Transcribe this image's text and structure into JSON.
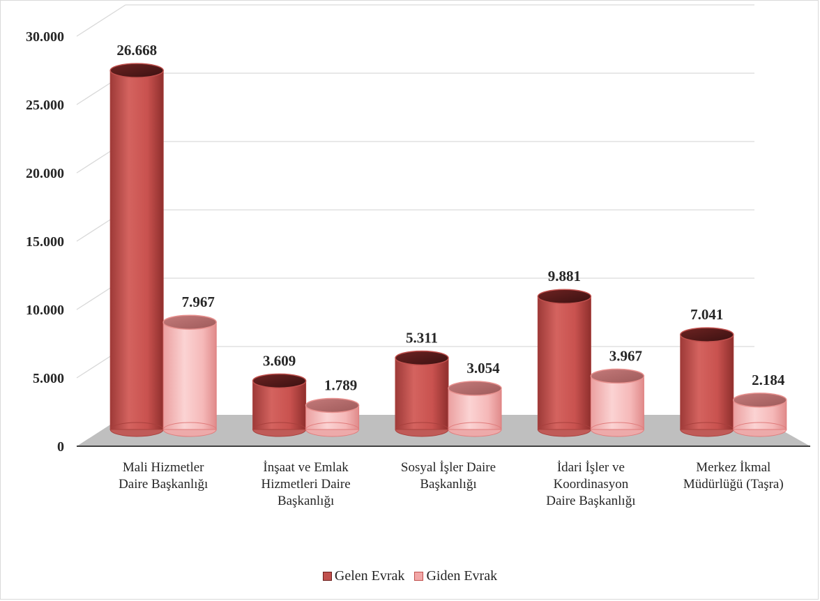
{
  "chart_data": {
    "type": "bar",
    "subtype": "3d-cylinder-clustered",
    "title": "",
    "xlabel": "",
    "ylabel": "",
    "ylim": [
      0,
      30000
    ],
    "yticks": [
      "0",
      "5.000",
      "10.000",
      "15.000",
      "20.000",
      "25.000",
      "30.000"
    ],
    "ytick_values": [
      0,
      5000,
      10000,
      15000,
      20000,
      25000,
      30000
    ],
    "grid": true,
    "legend_position": "bottom",
    "categories": [
      [
        "Mali Hizmetler",
        "Daire Başkanlığı"
      ],
      [
        "İnşaat ve Emlak",
        "Hizmetleri Daire",
        "Başkanlığı"
      ],
      [
        "Sosyal İşler Daire",
        "Başkanlığı"
      ],
      [
        "İdari İşler ve",
        "Koordinasyon",
        "Daire Başkanlığı"
      ],
      [
        "Merkez İkmal",
        "Müdürlüğü (Taşra)"
      ]
    ],
    "series": [
      {
        "name": "Gelen Evrak",
        "color": "#c0504d",
        "values": [
          26668,
          3609,
          5311,
          9881,
          7041
        ],
        "labels": [
          "26.668",
          "3.609",
          "5.311",
          "9.881",
          "7.041"
        ]
      },
      {
        "name": "Giden Evrak",
        "color": "#f2a7a7",
        "values": [
          7967,
          1789,
          3054,
          3967,
          2184
        ],
        "labels": [
          "7.967",
          "1.789",
          "3.054",
          "3.967",
          "2.184"
        ]
      }
    ]
  },
  "legend": {
    "items": [
      "Gelen Evrak",
      "Giden Evrak"
    ]
  }
}
